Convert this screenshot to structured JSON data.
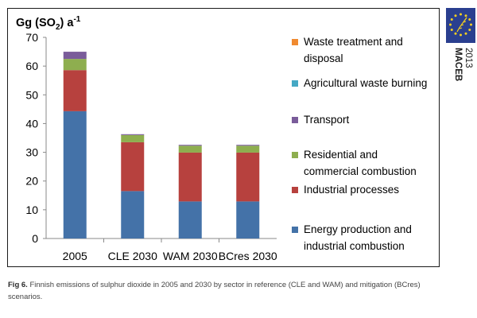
{
  "logo": {
    "name": "MACEB",
    "year": "2013",
    "color": "#2a3f8f"
  },
  "caption": {
    "label": "Fig 6.",
    "text": "Finnish emissions of sulphur dioxide in 2005 and 2030 by sector in reference (CLE and WAM) and mitigation (BCres) scenarios."
  },
  "chart_data": {
    "type": "bar",
    "stacked": true,
    "ylabel": "Gg (SO2) a-1",
    "ylim": [
      0,
      70
    ],
    "yticks": [
      0,
      10,
      20,
      30,
      40,
      50,
      60,
      70
    ],
    "categories": [
      "2005",
      "CLE 2030",
      "WAM 2030",
      "BCres 2030"
    ],
    "series": [
      {
        "name": "Energy production and industrial combustion",
        "color": "#4472a8",
        "values": [
          44.3,
          16.5,
          12.9,
          12.9
        ]
      },
      {
        "name": "Industrial processes",
        "color": "#b7413e",
        "values": [
          14.3,
          17.0,
          17.0,
          17.0
        ]
      },
      {
        "name": "Residential and commercial combustion",
        "color": "#8eae4f",
        "values": [
          3.9,
          2.5,
          2.4,
          2.4
        ]
      },
      {
        "name": "Transport",
        "color": "#7a5c9a",
        "values": [
          2.5,
          0.3,
          0.3,
          0.3
        ]
      },
      {
        "name": "Agricultural waste burning",
        "color": "#45a8c4",
        "values": [
          0,
          0,
          0,
          0
        ]
      },
      {
        "name": "Waste treatment and disposal",
        "color": "#f08a30",
        "values": [
          0,
          0,
          0,
          0
        ]
      }
    ],
    "legend": {
      "position": "right",
      "entries": [
        {
          "series": 5,
          "lines": [
            "Waste treatment and",
            "disposal"
          ]
        },
        {
          "series": 4,
          "lines": [
            "Agricultural waste burning"
          ]
        },
        {
          "series": 3,
          "lines": [
            "Transport"
          ]
        },
        {
          "series": 2,
          "lines": [
            "Residential and",
            "commercial combustion"
          ]
        },
        {
          "series": 1,
          "lines": [
            "Industrial processes"
          ]
        },
        {
          "series": 0,
          "lines": [
            "Energy production and",
            "industrial combustion"
          ]
        }
      ]
    }
  }
}
